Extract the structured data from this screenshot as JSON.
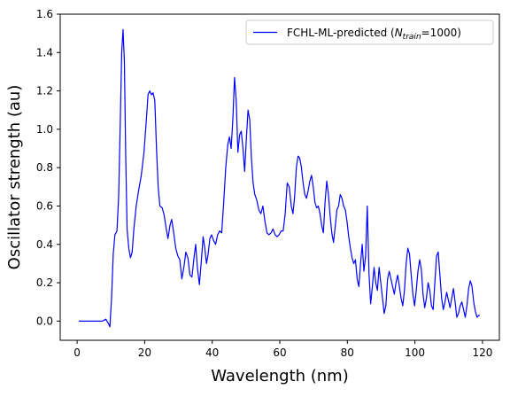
{
  "chart_data": {
    "type": "line",
    "title": "",
    "xlabel": "Wavelength (nm)",
    "ylabel": "Oscillator strength (au)",
    "xlim": [
      -5,
      125
    ],
    "ylim": [
      -0.1,
      1.6
    ],
    "xticks": [
      0,
      20,
      40,
      60,
      80,
      100,
      120
    ],
    "yticks": [
      0.0,
      0.2,
      0.4,
      0.6,
      0.8,
      1.0,
      1.2,
      1.4,
      1.6
    ],
    "xtick_labels": [
      "0",
      "20",
      "40",
      "60",
      "80",
      "100",
      "120"
    ],
    "ytick_labels": [
      "0.0",
      "0.2",
      "0.4",
      "0.6",
      "0.8",
      "1.0",
      "1.2",
      "1.4",
      "1.6"
    ],
    "grid": false,
    "legend_position": "top-right",
    "series": [
      {
        "name": "FCHL-ML-predicted (N_train=1000)",
        "legend_main": "FCHL-ML-predicted (",
        "legend_var": "N",
        "legend_sub": "train",
        "legend_tail": "=1000)",
        "color": "#0000ff",
        "points": [
          [
            0.5,
            0.0
          ],
          [
            2,
            0.0
          ],
          [
            4,
            0.0
          ],
          [
            6,
            0.0
          ],
          [
            7.5,
            0.0
          ],
          [
            8.5,
            0.01
          ],
          [
            9.2,
            -0.01
          ],
          [
            9.7,
            -0.03
          ],
          [
            10.2,
            0.12
          ],
          [
            10.7,
            0.35
          ],
          [
            11.2,
            0.45
          ],
          [
            11.8,
            0.47
          ],
          [
            12.3,
            0.65
          ],
          [
            12.8,
            1.05
          ],
          [
            13.2,
            1.4
          ],
          [
            13.6,
            1.52
          ],
          [
            14.0,
            1.35
          ],
          [
            14.4,
            0.85
          ],
          [
            14.8,
            0.48
          ],
          [
            15.3,
            0.38
          ],
          [
            15.8,
            0.33
          ],
          [
            16.3,
            0.36
          ],
          [
            16.8,
            0.48
          ],
          [
            17.5,
            0.6
          ],
          [
            18.2,
            0.68
          ],
          [
            19.0,
            0.76
          ],
          [
            19.8,
            0.88
          ],
          [
            20.5,
            1.05
          ],
          [
            21.0,
            1.18
          ],
          [
            21.5,
            1.2
          ],
          [
            22.0,
            1.18
          ],
          [
            22.5,
            1.19
          ],
          [
            23.0,
            1.15
          ],
          [
            23.5,
            0.9
          ],
          [
            24.0,
            0.7
          ],
          [
            24.5,
            0.6
          ],
          [
            25.2,
            0.59
          ],
          [
            25.8,
            0.55
          ],
          [
            26.4,
            0.48
          ],
          [
            26.9,
            0.43
          ],
          [
            27.5,
            0.5
          ],
          [
            28.0,
            0.53
          ],
          [
            28.6,
            0.46
          ],
          [
            29.2,
            0.38
          ],
          [
            29.8,
            0.34
          ],
          [
            30.4,
            0.32
          ],
          [
            31.0,
            0.22
          ],
          [
            31.6,
            0.28
          ],
          [
            32.2,
            0.36
          ],
          [
            32.8,
            0.33
          ],
          [
            33.4,
            0.24
          ],
          [
            34.0,
            0.23
          ],
          [
            34.6,
            0.33
          ],
          [
            35.1,
            0.4
          ],
          [
            35.6,
            0.28
          ],
          [
            36.2,
            0.19
          ],
          [
            36.8,
            0.32
          ],
          [
            37.3,
            0.44
          ],
          [
            37.8,
            0.38
          ],
          [
            38.3,
            0.3
          ],
          [
            38.8,
            0.35
          ],
          [
            39.3,
            0.43
          ],
          [
            39.8,
            0.45
          ],
          [
            40.4,
            0.42
          ],
          [
            41.0,
            0.4
          ],
          [
            41.6,
            0.45
          ],
          [
            42.2,
            0.47
          ],
          [
            42.8,
            0.46
          ],
          [
            43.4,
            0.62
          ],
          [
            44.0,
            0.8
          ],
          [
            44.6,
            0.92
          ],
          [
            45.1,
            0.96
          ],
          [
            45.6,
            0.9
          ],
          [
            46.1,
            1.05
          ],
          [
            46.6,
            1.27
          ],
          [
            47.1,
            1.15
          ],
          [
            47.6,
            0.88
          ],
          [
            48.1,
            0.97
          ],
          [
            48.6,
            0.99
          ],
          [
            49.1,
            0.9
          ],
          [
            49.6,
            0.78
          ],
          [
            50.1,
            0.95
          ],
          [
            50.6,
            1.1
          ],
          [
            51.1,
            1.05
          ],
          [
            51.6,
            0.85
          ],
          [
            52.1,
            0.72
          ],
          [
            52.6,
            0.66
          ],
          [
            53.2,
            0.63
          ],
          [
            53.8,
            0.58
          ],
          [
            54.4,
            0.56
          ],
          [
            55.0,
            0.6
          ],
          [
            55.6,
            0.52
          ],
          [
            56.2,
            0.46
          ],
          [
            56.8,
            0.45
          ],
          [
            57.4,
            0.46
          ],
          [
            58.0,
            0.48
          ],
          [
            58.6,
            0.45
          ],
          [
            59.2,
            0.44
          ],
          [
            59.8,
            0.45
          ],
          [
            60.4,
            0.47
          ],
          [
            61.0,
            0.47
          ],
          [
            61.6,
            0.56
          ],
          [
            62.2,
            0.72
          ],
          [
            62.8,
            0.7
          ],
          [
            63.4,
            0.6
          ],
          [
            63.9,
            0.56
          ],
          [
            64.4,
            0.65
          ],
          [
            64.9,
            0.8
          ],
          [
            65.4,
            0.86
          ],
          [
            65.9,
            0.85
          ],
          [
            66.4,
            0.8
          ],
          [
            66.9,
            0.72
          ],
          [
            67.4,
            0.66
          ],
          [
            67.9,
            0.64
          ],
          [
            68.4,
            0.68
          ],
          [
            68.9,
            0.73
          ],
          [
            69.4,
            0.76
          ],
          [
            69.9,
            0.7
          ],
          [
            70.4,
            0.62
          ],
          [
            70.9,
            0.59
          ],
          [
            71.4,
            0.6
          ],
          [
            71.9,
            0.56
          ],
          [
            72.4,
            0.5
          ],
          [
            72.9,
            0.46
          ],
          [
            73.4,
            0.62
          ],
          [
            73.9,
            0.73
          ],
          [
            74.4,
            0.66
          ],
          [
            74.9,
            0.55
          ],
          [
            75.4,
            0.46
          ],
          [
            75.9,
            0.41
          ],
          [
            76.4,
            0.49
          ],
          [
            76.9,
            0.58
          ],
          [
            77.4,
            0.6
          ],
          [
            77.9,
            0.66
          ],
          [
            78.4,
            0.64
          ],
          [
            78.9,
            0.6
          ],
          [
            79.4,
            0.58
          ],
          [
            79.9,
            0.52
          ],
          [
            80.4,
            0.44
          ],
          [
            80.9,
            0.38
          ],
          [
            81.4,
            0.33
          ],
          [
            81.9,
            0.3
          ],
          [
            82.4,
            0.32
          ],
          [
            82.9,
            0.22
          ],
          [
            83.4,
            0.18
          ],
          [
            83.9,
            0.3
          ],
          [
            84.4,
            0.4
          ],
          [
            84.9,
            0.26
          ],
          [
            85.4,
            0.34
          ],
          [
            85.9,
            0.6
          ],
          [
            86.4,
            0.25
          ],
          [
            86.9,
            0.09
          ],
          [
            87.4,
            0.18
          ],
          [
            87.9,
            0.28
          ],
          [
            88.4,
            0.2
          ],
          [
            88.9,
            0.16
          ],
          [
            89.4,
            0.28
          ],
          [
            89.9,
            0.2
          ],
          [
            90.4,
            0.12
          ],
          [
            90.9,
            0.04
          ],
          [
            91.4,
            0.08
          ],
          [
            91.9,
            0.22
          ],
          [
            92.4,
            0.26
          ],
          [
            92.9,
            0.22
          ],
          [
            93.4,
            0.18
          ],
          [
            93.9,
            0.14
          ],
          [
            94.4,
            0.2
          ],
          [
            94.9,
            0.24
          ],
          [
            95.4,
            0.18
          ],
          [
            95.9,
            0.12
          ],
          [
            96.4,
            0.08
          ],
          [
            96.9,
            0.16
          ],
          [
            97.4,
            0.3
          ],
          [
            97.9,
            0.38
          ],
          [
            98.4,
            0.35
          ],
          [
            98.9,
            0.24
          ],
          [
            99.4,
            0.14
          ],
          [
            99.9,
            0.08
          ],
          [
            100.4,
            0.16
          ],
          [
            100.9,
            0.26
          ],
          [
            101.4,
            0.32
          ],
          [
            101.9,
            0.27
          ],
          [
            102.4,
            0.14
          ],
          [
            102.9,
            0.07
          ],
          [
            103.4,
            0.12
          ],
          [
            103.9,
            0.2
          ],
          [
            104.4,
            0.16
          ],
          [
            104.9,
            0.08
          ],
          [
            105.4,
            0.06
          ],
          [
            105.9,
            0.2
          ],
          [
            106.4,
            0.34
          ],
          [
            106.9,
            0.36
          ],
          [
            107.4,
            0.24
          ],
          [
            107.9,
            0.12
          ],
          [
            108.4,
            0.06
          ],
          [
            108.9,
            0.1
          ],
          [
            109.4,
            0.15
          ],
          [
            109.9,
            0.11
          ],
          [
            110.4,
            0.07
          ],
          [
            110.9,
            0.12
          ],
          [
            111.4,
            0.17
          ],
          [
            111.9,
            0.1
          ],
          [
            112.4,
            0.02
          ],
          [
            112.9,
            0.04
          ],
          [
            113.4,
            0.08
          ],
          [
            113.9,
            0.1
          ],
          [
            114.4,
            0.06
          ],
          [
            114.9,
            0.02
          ],
          [
            115.4,
            0.08
          ],
          [
            115.9,
            0.17
          ],
          [
            116.4,
            0.21
          ],
          [
            116.9,
            0.18
          ],
          [
            117.4,
            0.1
          ],
          [
            117.9,
            0.05
          ],
          [
            118.4,
            0.02
          ],
          [
            118.9,
            0.03
          ],
          [
            119.2,
            0.03
          ]
        ]
      }
    ]
  }
}
